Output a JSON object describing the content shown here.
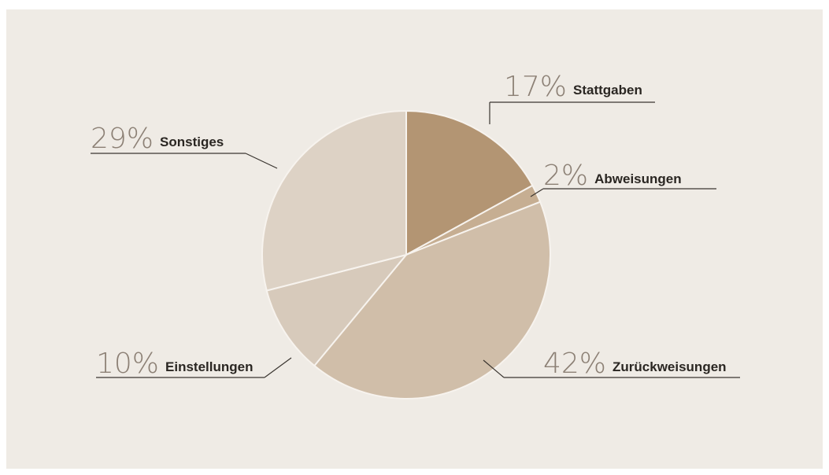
{
  "chart_data": {
    "type": "pie",
    "categories": [
      "Stattgaben",
      "Abweisungen",
      "Zurückweisungen",
      "Einstellungen",
      "Sonstiges"
    ],
    "values": [
      17,
      2,
      42,
      10,
      29
    ],
    "value_labels": [
      "17%",
      "2%",
      "42%",
      "10%",
      "29%"
    ],
    "colors": [
      "#b39573",
      "#c6ae92",
      "#d0bea9",
      "#d7cabb",
      "#ddd2c5"
    ]
  }
}
